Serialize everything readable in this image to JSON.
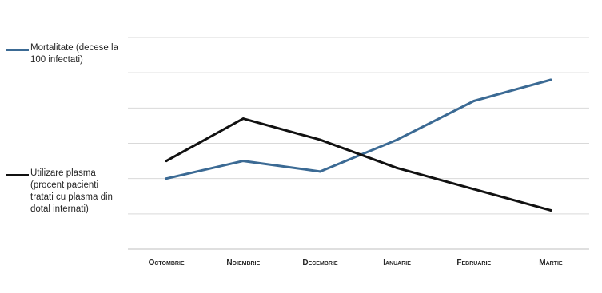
{
  "chart_data": {
    "type": "line",
    "categories": [
      "Octombrie",
      "Noiembrie",
      "Decembrie",
      "Ianuarie",
      "Februarie",
      "Martie"
    ],
    "series": [
      {
        "name": "Mortalitate (decese la 100 infectati)",
        "color": "#3b6a94",
        "values": [
          2.0,
          2.5,
          2.2,
          3.1,
          4.2,
          4.8
        ]
      },
      {
        "name": "Utilizare plasma (procent pacienti tratati cu plasma din dotal internati)",
        "color": "#111111",
        "values": [
          2.5,
          3.7,
          3.1,
          2.3,
          1.7,
          1.1
        ]
      }
    ],
    "ylim": [
      0,
      6
    ],
    "grid": true,
    "legend_position": "left"
  },
  "legend": [
    {
      "label": "Mortalitate (decese la 100 infectati)",
      "color": "#3b6a94"
    },
    {
      "label": "Utilizare plasma (procent pacienti tratati cu plasma din dotal internati)",
      "color": "#111111"
    }
  ],
  "colors": {
    "grid": "#d9d9d9",
    "axis": "#bfbfbf"
  }
}
